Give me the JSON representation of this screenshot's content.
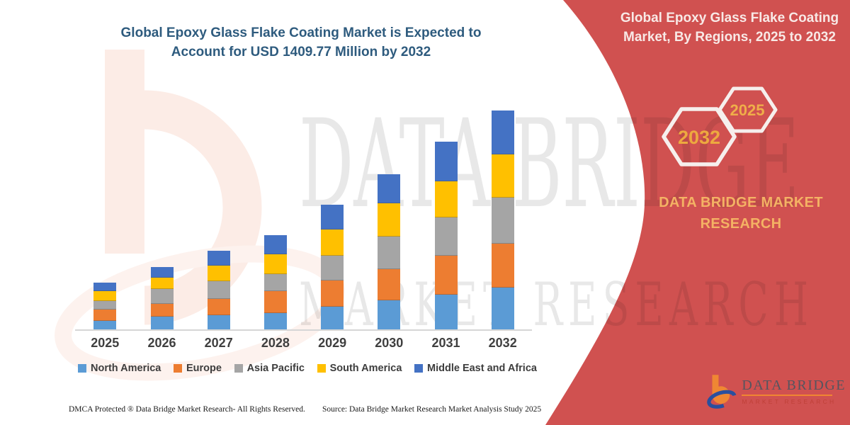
{
  "left_section": {
    "title_line1": "Global Epoxy Glass Flake Coating Market is Expected to",
    "title_line2": "Account for USD 1409.77 Million by 2032",
    "title_color": "#2e5b7e"
  },
  "chart_data": {
    "type": "bar",
    "stacked": true,
    "title": "Global Epoxy Glass Flake Coating Market, By Regions, 2025 to 2032",
    "unit": "USD Million",
    "grid": false,
    "y_axis_shown": false,
    "legend_position": "bottom",
    "anchor_value": {
      "year": "2032",
      "total": 1409.77,
      "label": "USD 1409.77 Million by 2032"
    },
    "categories": [
      "2025",
      "2026",
      "2027",
      "2028",
      "2029",
      "2030",
      "2031",
      "2032"
    ],
    "series": [
      {
        "name": "North America",
        "color": "#5B9BD5",
        "values": [
          59,
          86,
          96,
          109,
          150,
          191,
          228,
          273
        ]
      },
      {
        "name": "Europe",
        "color": "#ED7D31",
        "values": [
          73,
          82,
          105,
          141,
          168,
          200,
          250,
          282
        ]
      },
      {
        "name": "Asia Pacific",
        "color": "#A5A5A5",
        "values": [
          55,
          96,
          114,
          109,
          159,
          209,
          246,
          296
        ]
      },
      {
        "name": "South America",
        "color": "#FFC000",
        "values": [
          64,
          73,
          100,
          127,
          168,
          214,
          232,
          277
        ]
      },
      {
        "name": "Middle East and Africa",
        "color": "#4472C4",
        "values": [
          55,
          68,
          96,
          123,
          159,
          187,
          255,
          282
        ]
      }
    ],
    "totals_estimated": [
      306,
      405,
      511,
      609,
      804,
      1001,
      1211,
      1410
    ]
  },
  "footer": {
    "dmca": "DMCA Protected ® Data Bridge Market Research-  All Rights Reserved.",
    "source": "Source: Data Bridge Market Research  Market Analysis Study 2025"
  },
  "right_panel": {
    "background_color": "#d05150",
    "title_line1": "Global Epoxy Glass Flake Coating",
    "title_line2": "Market, By Regions, 2025 to 2032",
    "hexagons": [
      {
        "label": "2032"
      },
      {
        "label": "2025"
      }
    ],
    "hexagon_label_color": "#eda93f",
    "brand_line1": "DATA BRIDGE MARKET",
    "brand_line2": "RESEARCH"
  },
  "logo": {
    "wordmark": "DATA BRIDGE",
    "subtext": "MARKET RESEARCH"
  },
  "watermark": {
    "line1": "DATA BRIDGE",
    "line2": "MARKET RESEARCH"
  }
}
